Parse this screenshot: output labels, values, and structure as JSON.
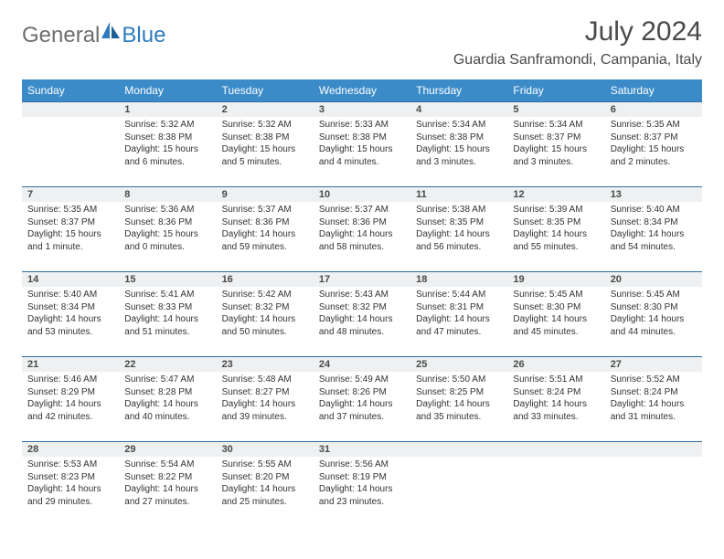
{
  "logo": {
    "general": "General",
    "blue": "Blue"
  },
  "title": "July 2024",
  "location": "Guardia Sanframondi, Campania, Italy",
  "colors": {
    "header_bg": "#3b8bc9",
    "header_text": "#ffffff",
    "daynum_bg": "#eef0f1",
    "row_border": "#2e6fa3",
    "logo_gray": "#6e6e6e",
    "logo_blue": "#2d7bbf",
    "text": "#333333"
  },
  "typography": {
    "title_fontsize": 30,
    "location_fontsize": 16,
    "header_fontsize": 12,
    "daynum_fontsize": 11,
    "cell_fontsize": 10
  },
  "days_of_week": [
    "Sunday",
    "Monday",
    "Tuesday",
    "Wednesday",
    "Thursday",
    "Friday",
    "Saturday"
  ],
  "weeks": [
    [
      null,
      {
        "n": "1",
        "sunrise": "5:32 AM",
        "sunset": "8:38 PM",
        "daylight": "15 hours and 6 minutes."
      },
      {
        "n": "2",
        "sunrise": "5:32 AM",
        "sunset": "8:38 PM",
        "daylight": "15 hours and 5 minutes."
      },
      {
        "n": "3",
        "sunrise": "5:33 AM",
        "sunset": "8:38 PM",
        "daylight": "15 hours and 4 minutes."
      },
      {
        "n": "4",
        "sunrise": "5:34 AM",
        "sunset": "8:38 PM",
        "daylight": "15 hours and 3 minutes."
      },
      {
        "n": "5",
        "sunrise": "5:34 AM",
        "sunset": "8:37 PM",
        "daylight": "15 hours and 3 minutes."
      },
      {
        "n": "6",
        "sunrise": "5:35 AM",
        "sunset": "8:37 PM",
        "daylight": "15 hours and 2 minutes."
      }
    ],
    [
      {
        "n": "7",
        "sunrise": "5:35 AM",
        "sunset": "8:37 PM",
        "daylight": "15 hours and 1 minute."
      },
      {
        "n": "8",
        "sunrise": "5:36 AM",
        "sunset": "8:36 PM",
        "daylight": "15 hours and 0 minutes."
      },
      {
        "n": "9",
        "sunrise": "5:37 AM",
        "sunset": "8:36 PM",
        "daylight": "14 hours and 59 minutes."
      },
      {
        "n": "10",
        "sunrise": "5:37 AM",
        "sunset": "8:36 PM",
        "daylight": "14 hours and 58 minutes."
      },
      {
        "n": "11",
        "sunrise": "5:38 AM",
        "sunset": "8:35 PM",
        "daylight": "14 hours and 56 minutes."
      },
      {
        "n": "12",
        "sunrise": "5:39 AM",
        "sunset": "8:35 PM",
        "daylight": "14 hours and 55 minutes."
      },
      {
        "n": "13",
        "sunrise": "5:40 AM",
        "sunset": "8:34 PM",
        "daylight": "14 hours and 54 minutes."
      }
    ],
    [
      {
        "n": "14",
        "sunrise": "5:40 AM",
        "sunset": "8:34 PM",
        "daylight": "14 hours and 53 minutes."
      },
      {
        "n": "15",
        "sunrise": "5:41 AM",
        "sunset": "8:33 PM",
        "daylight": "14 hours and 51 minutes."
      },
      {
        "n": "16",
        "sunrise": "5:42 AM",
        "sunset": "8:32 PM",
        "daylight": "14 hours and 50 minutes."
      },
      {
        "n": "17",
        "sunrise": "5:43 AM",
        "sunset": "8:32 PM",
        "daylight": "14 hours and 48 minutes."
      },
      {
        "n": "18",
        "sunrise": "5:44 AM",
        "sunset": "8:31 PM",
        "daylight": "14 hours and 47 minutes."
      },
      {
        "n": "19",
        "sunrise": "5:45 AM",
        "sunset": "8:30 PM",
        "daylight": "14 hours and 45 minutes."
      },
      {
        "n": "20",
        "sunrise": "5:45 AM",
        "sunset": "8:30 PM",
        "daylight": "14 hours and 44 minutes."
      }
    ],
    [
      {
        "n": "21",
        "sunrise": "5:46 AM",
        "sunset": "8:29 PM",
        "daylight": "14 hours and 42 minutes."
      },
      {
        "n": "22",
        "sunrise": "5:47 AM",
        "sunset": "8:28 PM",
        "daylight": "14 hours and 40 minutes."
      },
      {
        "n": "23",
        "sunrise": "5:48 AM",
        "sunset": "8:27 PM",
        "daylight": "14 hours and 39 minutes."
      },
      {
        "n": "24",
        "sunrise": "5:49 AM",
        "sunset": "8:26 PM",
        "daylight": "14 hours and 37 minutes."
      },
      {
        "n": "25",
        "sunrise": "5:50 AM",
        "sunset": "8:25 PM",
        "daylight": "14 hours and 35 minutes."
      },
      {
        "n": "26",
        "sunrise": "5:51 AM",
        "sunset": "8:24 PM",
        "daylight": "14 hours and 33 minutes."
      },
      {
        "n": "27",
        "sunrise": "5:52 AM",
        "sunset": "8:24 PM",
        "daylight": "14 hours and 31 minutes."
      }
    ],
    [
      {
        "n": "28",
        "sunrise": "5:53 AM",
        "sunset": "8:23 PM",
        "daylight": "14 hours and 29 minutes."
      },
      {
        "n": "29",
        "sunrise": "5:54 AM",
        "sunset": "8:22 PM",
        "daylight": "14 hours and 27 minutes."
      },
      {
        "n": "30",
        "sunrise": "5:55 AM",
        "sunset": "8:20 PM",
        "daylight": "14 hours and 25 minutes."
      },
      {
        "n": "31",
        "sunrise": "5:56 AM",
        "sunset": "8:19 PM",
        "daylight": "14 hours and 23 minutes."
      },
      null,
      null,
      null
    ]
  ],
  "labels": {
    "sunrise": "Sunrise:",
    "sunset": "Sunset:",
    "daylight": "Daylight:"
  }
}
